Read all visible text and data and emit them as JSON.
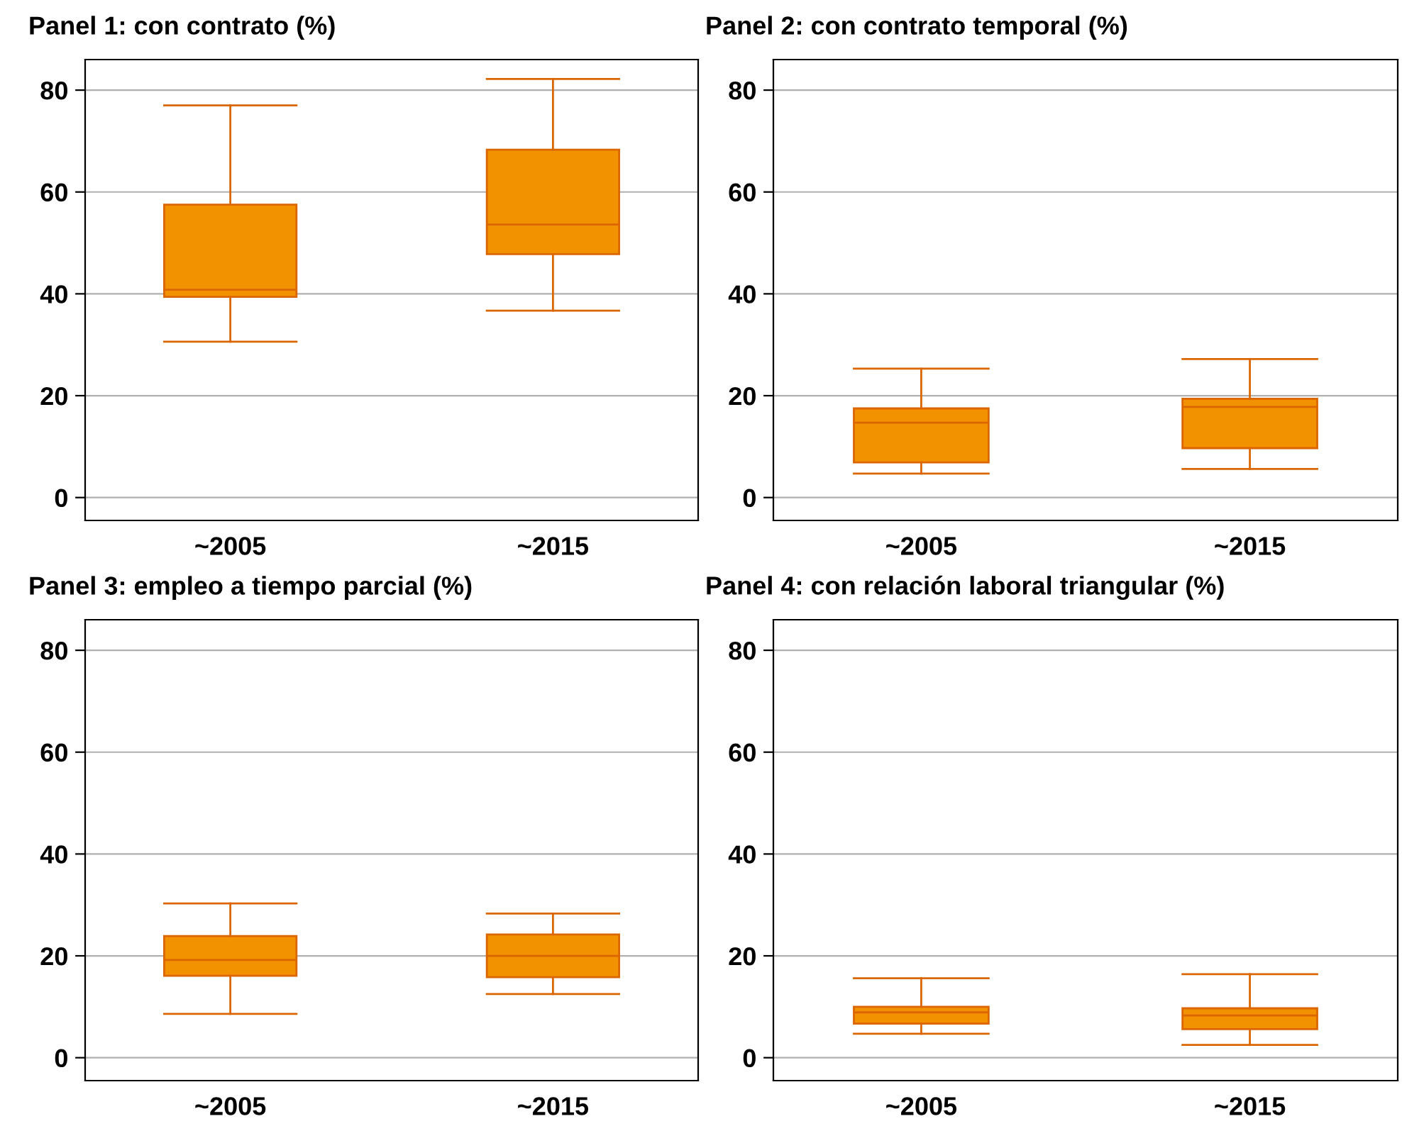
{
  "chart_data": [
    {
      "type": "box",
      "title": "Panel 1: con contrato (%)",
      "categories": [
        "~2005",
        "~2015"
      ],
      "ylim": [
        -4.5,
        86
      ],
      "yticks": [
        0,
        20,
        40,
        60,
        80
      ],
      "grid": "y",
      "color": "#f39200",
      "boxes": [
        {
          "low": 30.6,
          "q1": 39.4,
          "median": 40.8,
          "q3": 57.5,
          "high": 77
        },
        {
          "low": 36.7,
          "q1": 47.8,
          "median": 53.6,
          "q3": 68.3,
          "high": 82.2
        }
      ]
    },
    {
      "type": "box",
      "title": "Panel 2: con contrato temporal (%)",
      "categories": [
        "~2005",
        "~2015"
      ],
      "ylim": [
        -4.5,
        86
      ],
      "yticks": [
        0,
        20,
        40,
        60,
        80
      ],
      "grid": "y",
      "color": "#f39200",
      "boxes": [
        {
          "low": 4.7,
          "q1": 6.9,
          "median": 14.7,
          "q3": 17.5,
          "high": 25.3
        },
        {
          "low": 5.6,
          "q1": 9.7,
          "median": 17.8,
          "q3": 19.4,
          "high": 27.2
        }
      ]
    },
    {
      "type": "box",
      "title": "Panel 3: empleo a tiempo parcial (%)",
      "categories": [
        "~2005",
        "~2015"
      ],
      "ylim": [
        -4.5,
        86
      ],
      "yticks": [
        0,
        20,
        40,
        60,
        80
      ],
      "grid": "y",
      "color": "#f39200",
      "boxes": [
        {
          "low": 8.6,
          "q1": 16.1,
          "median": 19.2,
          "q3": 23.9,
          "high": 30.3
        },
        {
          "low": 12.5,
          "q1": 15.8,
          "median": 20,
          "q3": 24.2,
          "high": 28.3
        }
      ]
    },
    {
      "type": "box",
      "title": "Panel 4: con relación laboral triangular (%)",
      "categories": [
        "~2005",
        "~2015"
      ],
      "ylim": [
        -4.5,
        86
      ],
      "yticks": [
        0,
        20,
        40,
        60,
        80
      ],
      "grid": "y",
      "color": "#f39200",
      "boxes": [
        {
          "low": 4.7,
          "q1": 6.7,
          "median": 8.9,
          "q3": 10,
          "high": 15.6
        },
        {
          "low": 2.5,
          "q1": 5.6,
          "median": 8.3,
          "q3": 9.7,
          "high": 16.4
        }
      ]
    }
  ]
}
